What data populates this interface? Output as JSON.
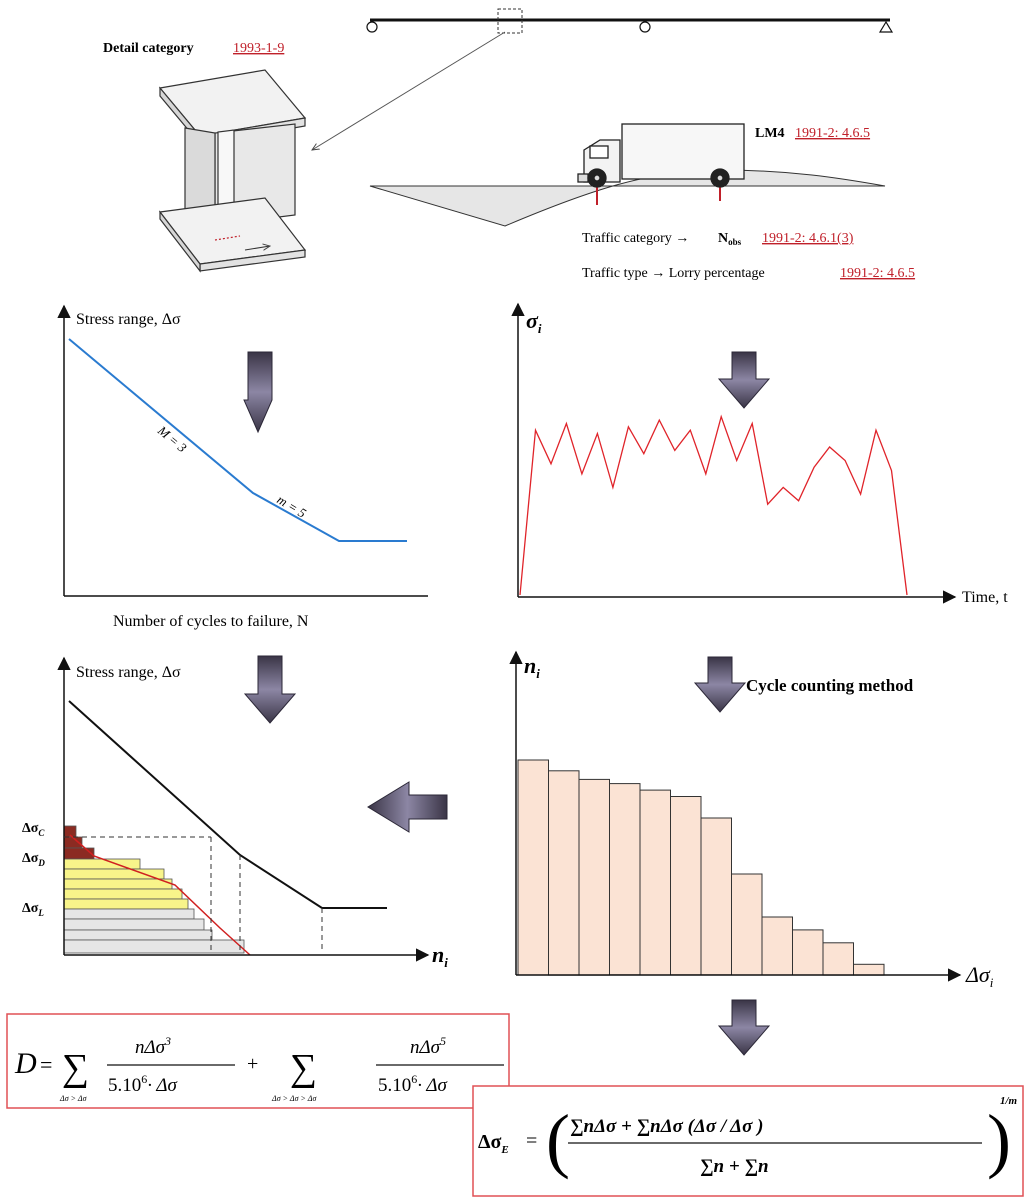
{
  "top": {
    "detail_category_label": "Detail category",
    "detail_category_ref": "1993-1-9",
    "lm4_label": "LM4",
    "lm4_ref": "1991-2: 4.6.5",
    "traffic_category_label": "Traffic category →",
    "nobs_label": "N",
    "nobs_sub": "obs",
    "traffic_category_ref": "1991-2: 4.6.1(3)",
    "traffic_type_label": "Traffic type → Lorry percentage",
    "traffic_type_ref": "1991-2: 4.6.5"
  },
  "sn_curve": {
    "ylabel": "Stress range, Δσ",
    "xlabel": "Number of cycles to failure, N",
    "slope1_label": "M = 3",
    "slope2_label": "m = 5",
    "color": "#2a7bd0"
  },
  "stress_history": {
    "ylabel": "σ",
    "ylabel_sub": "i",
    "xlabel": "Time, t",
    "color": "#e0242a",
    "series": [
      0,
      49,
      39,
      51,
      36,
      48,
      32,
      50,
      42,
      52,
      43,
      49,
      36,
      53,
      40,
      51,
      27,
      32,
      28,
      38,
      44,
      40,
      30,
      49,
      37,
      0
    ]
  },
  "damage_chart": {
    "ylabel": "Stress range, Δσ",
    "xlabel": "n",
    "xlabel_sub": "i",
    "delta_sigma_c": "Δσ",
    "c_sub": "C",
    "delta_sigma_d": "Δσ",
    "d_sub": "D",
    "delta_sigma_l": "Δσ",
    "l_sub": "L"
  },
  "histogram": {
    "ylabel": "n",
    "ylabel_sub": "i",
    "xlabel": "Δσ",
    "xlabel_sub": "i",
    "title": "Cycle counting method",
    "bar_color": "#fbe3d4",
    "values": [
      100,
      95,
      91,
      89,
      86,
      83,
      73,
      47,
      27,
      21,
      15,
      5
    ]
  },
  "formulas": {
    "border_color": "#e05055",
    "damage": {
      "D": "D",
      "eq": "=",
      "sum": "∑",
      "sub1": "Δσ > Δσ",
      "sub2": "Δσ > Δσ > Δσ",
      "num1": "nΔσ",
      "exp1": "3",
      "den1": "5.10",
      "den_exp": "6",
      "den1b": "· Δσ",
      "plus": "+",
      "num2": "nΔσ",
      "exp2": "5",
      "den2b": "· Δσ"
    },
    "equivalent": {
      "lhs": "Δσ",
      "lhs_sub": "E",
      "eq": "=",
      "numerator": "∑nΔσ + ∑nΔσ (Δσ / Δσ )",
      "denominator": "∑n + ∑n",
      "exponent": "1/m"
    }
  }
}
